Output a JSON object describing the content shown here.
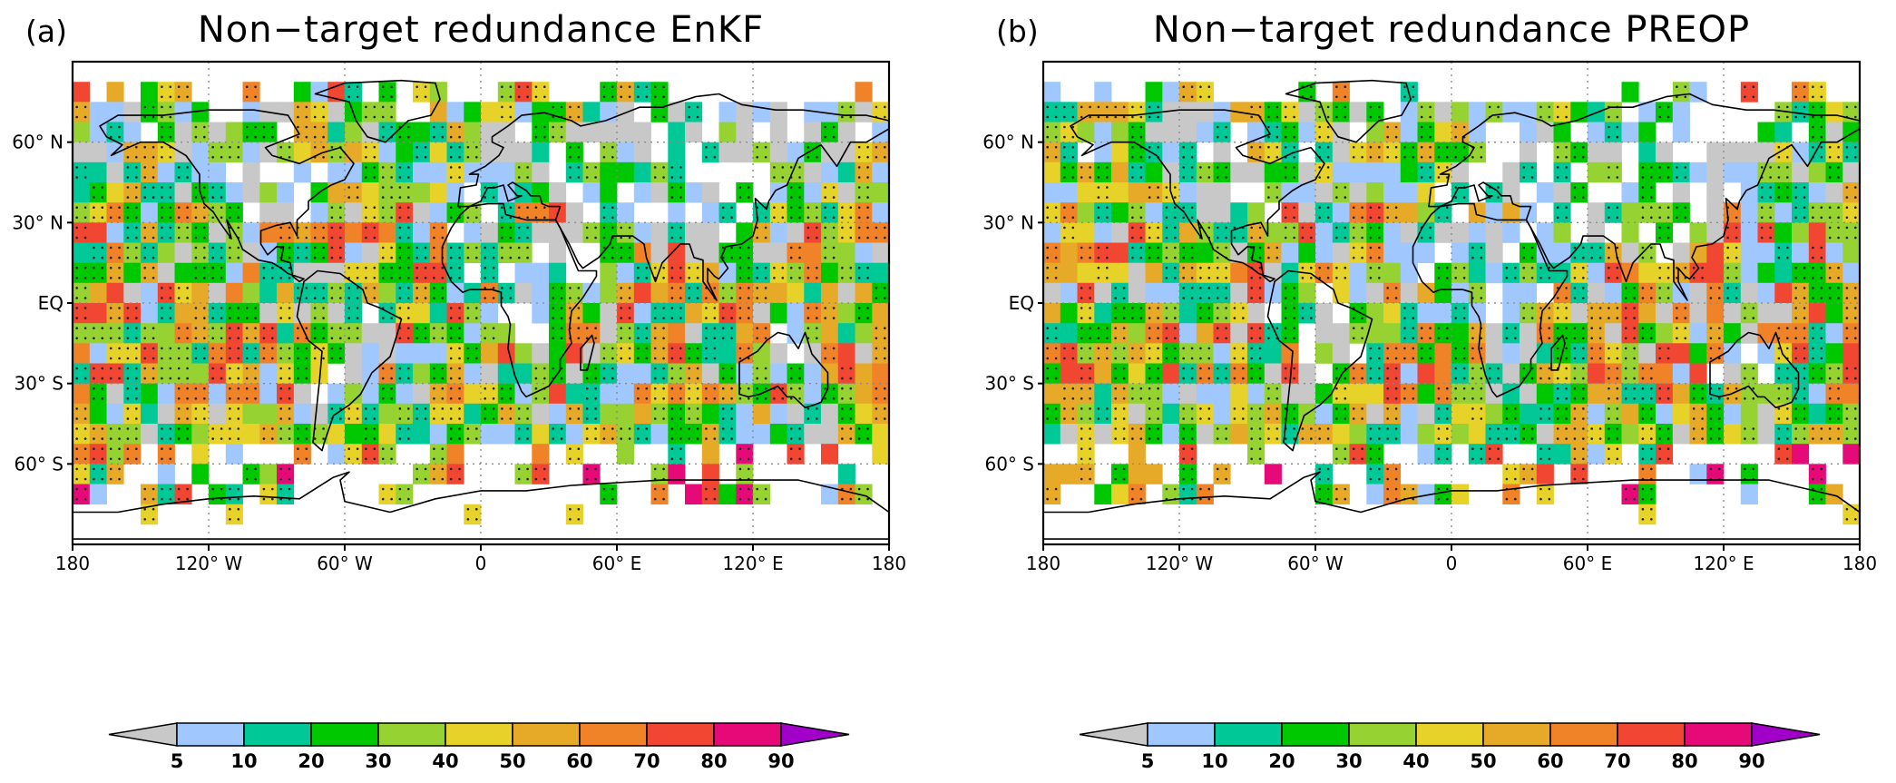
{
  "panels": [
    {
      "id": "a",
      "letter": "(a)",
      "title": "Non−target redundance EnKF"
    },
    {
      "id": "b",
      "letter": "(b)",
      "title": "Non−target redundance PREOP"
    }
  ],
  "map": {
    "lat_ticks": [
      "60° N",
      "30° N",
      "EQ",
      "30° S",
      "60° S"
    ],
    "lon_ticks": [
      "180",
      "120° W",
      "60° W",
      "0",
      "60° E",
      "120° E",
      "180"
    ],
    "lat_range": [
      -90,
      90
    ],
    "lon_range": [
      -180,
      180
    ],
    "gridlines": "dotted"
  },
  "colorbar": {
    "labels": [
      "5",
      "10",
      "20",
      "30",
      "40",
      "50",
      "60",
      "70",
      "80",
      "90"
    ],
    "colors": [
      "#c8c8c8",
      "#a0c8ff",
      "#00c896",
      "#00c800",
      "#96d232",
      "#e6d228",
      "#e6aa28",
      "#f08228",
      "#f04632",
      "#e60a78",
      "#a000c8"
    ]
  }
}
